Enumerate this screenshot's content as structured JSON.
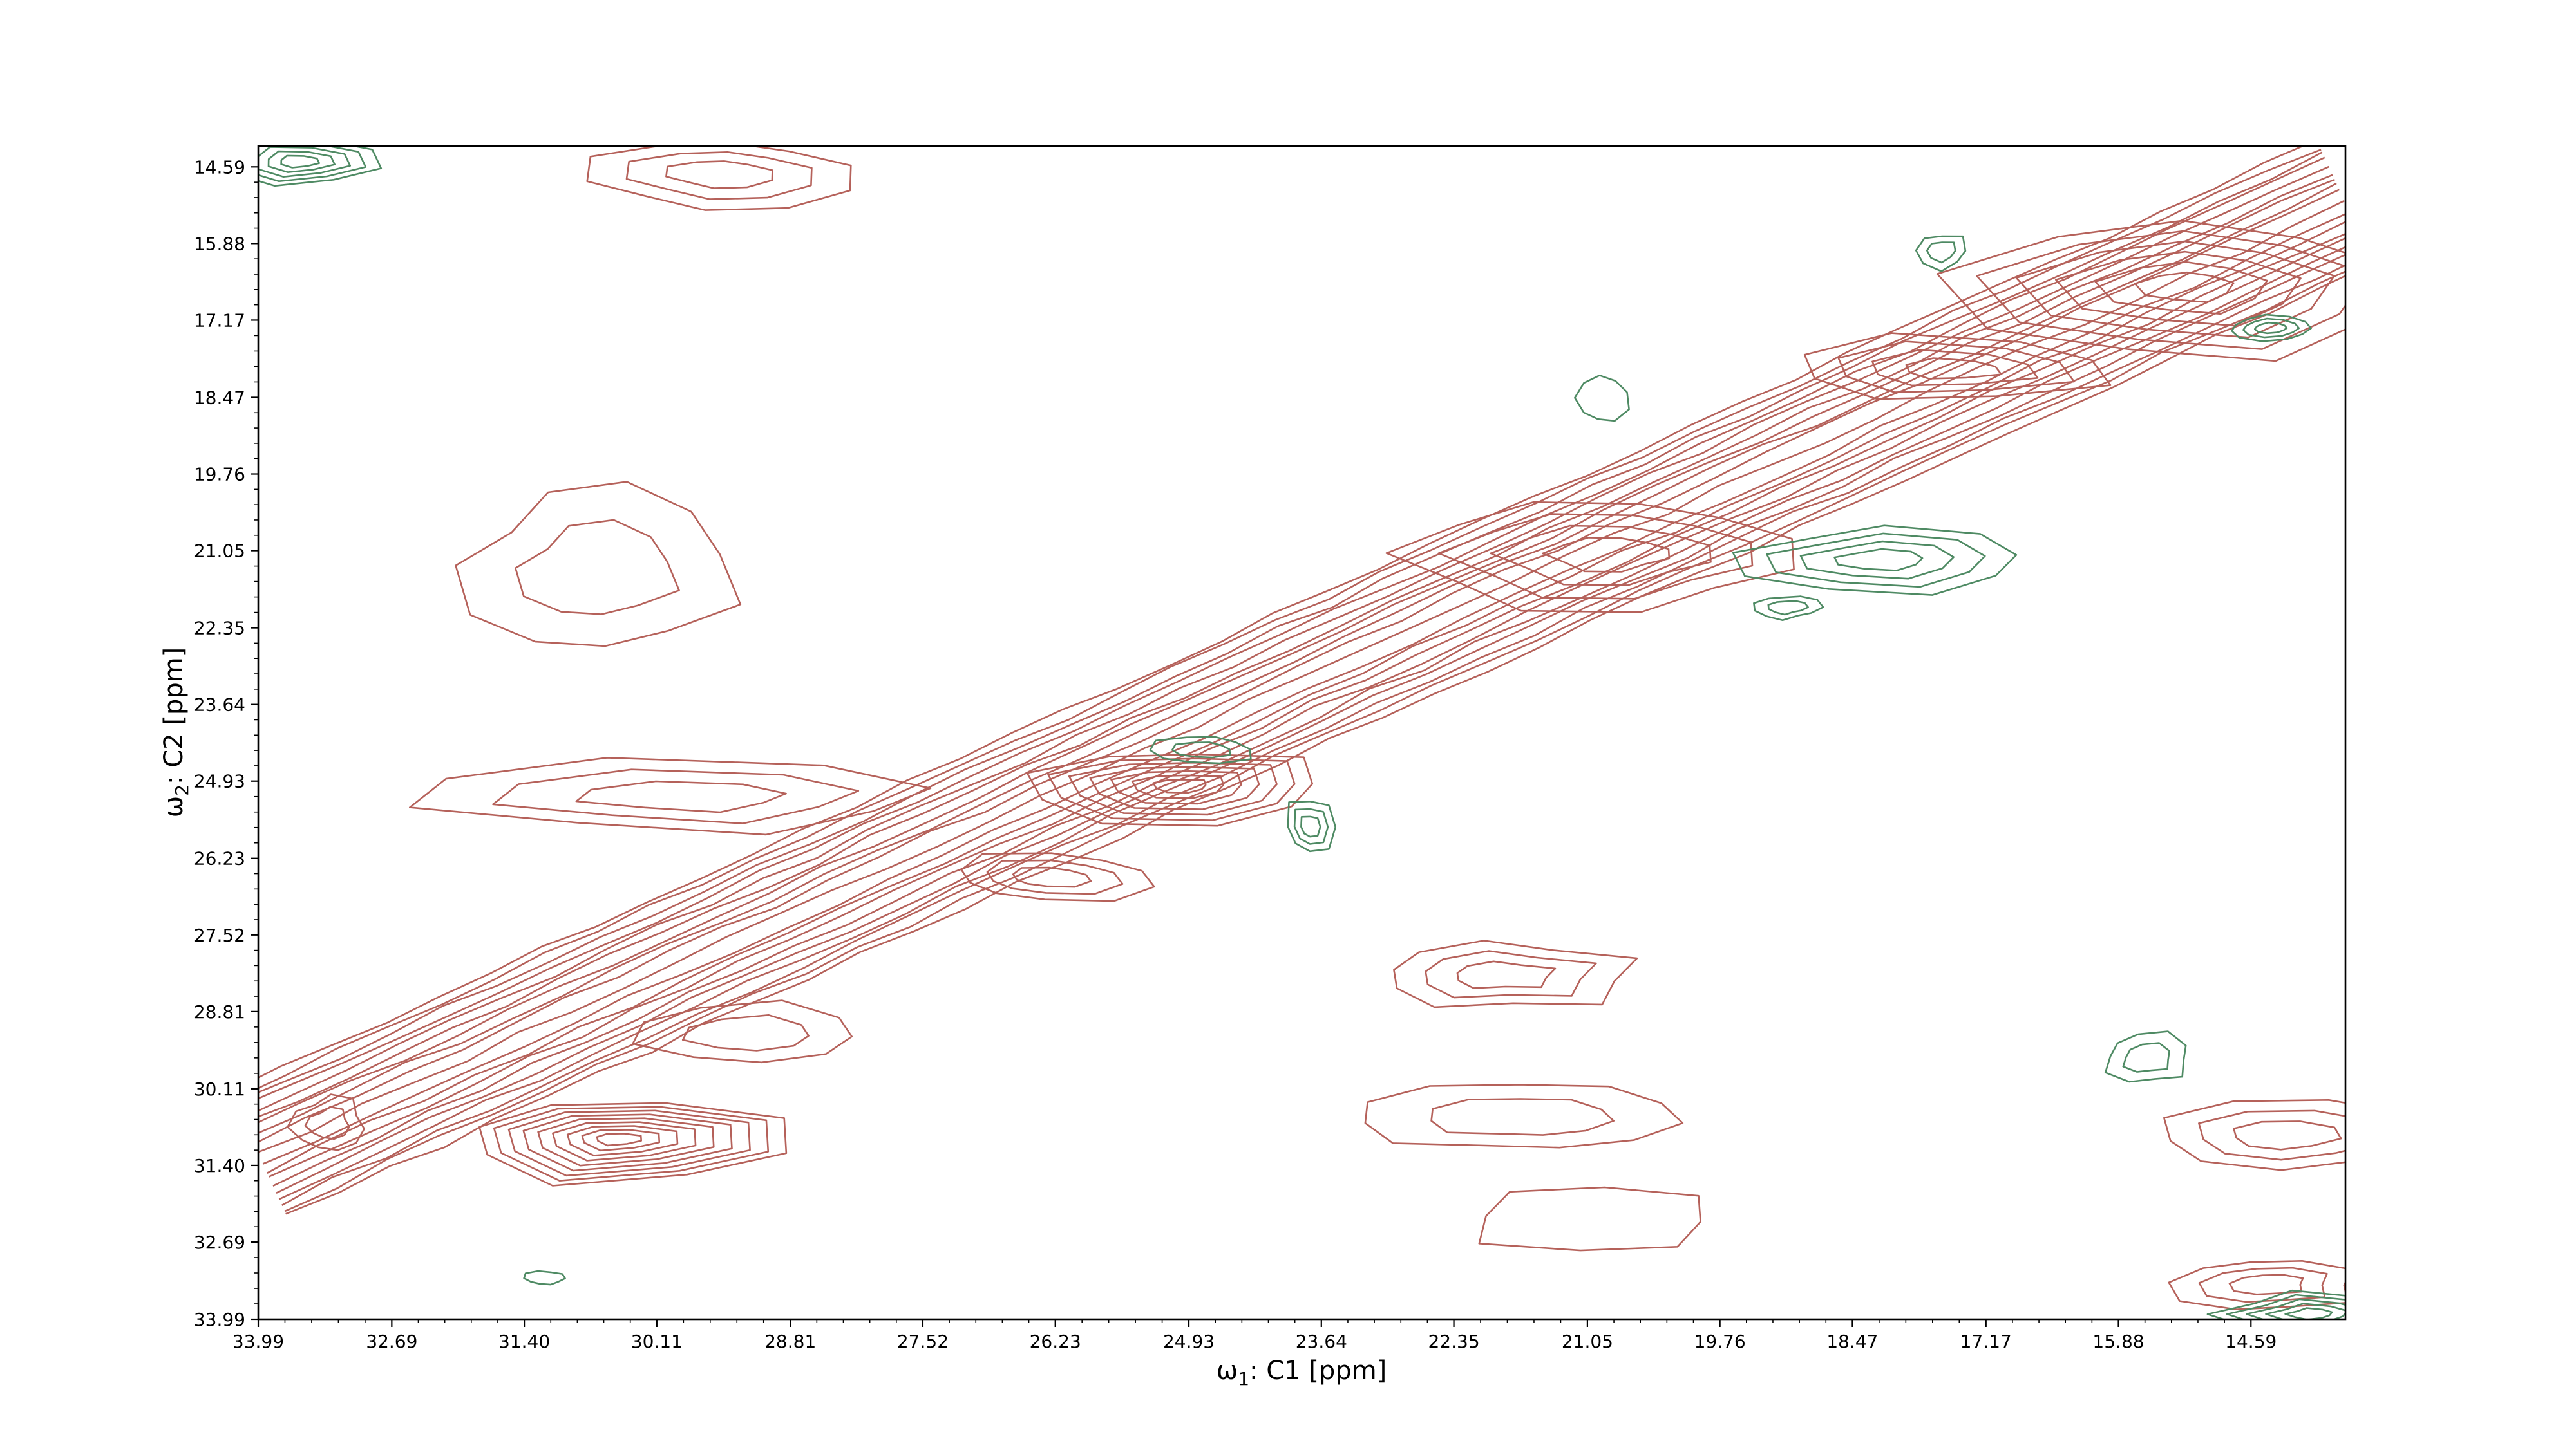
{
  "chart_data": {
    "type": "contour",
    "xlabel": {
      "omega": "ω",
      "sub": "1",
      "rest": ": C1 [ppm]"
    },
    "ylabel": {
      "omega": "ω",
      "sub": "2",
      "rest": ": C2 [ppm]"
    },
    "xlim": [
      33.99,
      13.67
    ],
    "ylim": [
      33.99,
      14.24
    ],
    "x_ticks": [
      "33.99",
      "32.69",
      "31.40",
      "30.11",
      "28.81",
      "27.52",
      "26.23",
      "24.93",
      "23.64",
      "22.35",
      "21.05",
      "19.76",
      "18.47",
      "17.17",
      "15.88",
      "14.59"
    ],
    "y_ticks": [
      "14.59",
      "15.88",
      "17.17",
      "18.47",
      "19.76",
      "21.05",
      "22.35",
      "23.64",
      "24.93",
      "26.23",
      "27.52",
      "28.81",
      "30.11",
      "31.40",
      "32.69",
      "33.99"
    ],
    "colors": {
      "positive": "#b5615a",
      "negative": "#4e8a63"
    },
    "diagonal": {
      "from": [
        33.99,
        31.2
      ],
      "to": [
        13.67,
        15.2
      ]
    },
    "peaks": [
      {
        "x": 30.5,
        "y": 30.95,
        "rx": 1.8,
        "ry": 0.78,
        "levels": 9,
        "sign": "positive"
      },
      {
        "x": 25.0,
        "y": 25.0,
        "rx": 1.5,
        "ry": 0.65,
        "levels": 7,
        "sign": "positive"
      },
      {
        "x": 26.3,
        "y": 26.55,
        "rx": 1.0,
        "ry": 0.42,
        "levels": 3,
        "sign": "positive"
      },
      {
        "x": 20.8,
        "y": 21.1,
        "rx": 1.9,
        "ry": 0.95,
        "levels": 4,
        "sign": "positive"
      },
      {
        "x": 17.5,
        "y": 18.0,
        "rx": 1.6,
        "ry": 0.55,
        "levels": 4,
        "sign": "positive"
      },
      {
        "x": 15.2,
        "y": 16.6,
        "rx": 2.2,
        "ry": 1.3,
        "levels": 6,
        "sign": "positive"
      },
      {
        "x": 29.5,
        "y": 14.7,
        "rx": 1.2,
        "ry": 0.6,
        "levels": 3,
        "sign": "positive"
      },
      {
        "x": 30.7,
        "y": 21.4,
        "rx": 1.3,
        "ry": 1.4,
        "levels": 2,
        "sign": "positive"
      },
      {
        "x": 29.8,
        "y": 25.2,
        "rx": 2.6,
        "ry": 0.6,
        "levels": 3,
        "sign": "positive"
      },
      {
        "x": 29.2,
        "y": 29.2,
        "rx": 1.2,
        "ry": 0.55,
        "levels": 2,
        "sign": "positive"
      },
      {
        "x": 21.9,
        "y": 28.2,
        "rx": 1.3,
        "ry": 0.6,
        "levels": 3,
        "sign": "positive"
      },
      {
        "x": 21.7,
        "y": 30.6,
        "rx": 1.4,
        "ry": 0.55,
        "levels": 2,
        "sign": "positive"
      },
      {
        "x": 21.0,
        "y": 32.3,
        "rx": 1.3,
        "ry": 0.6,
        "levels": 1,
        "sign": "positive"
      },
      {
        "x": 14.3,
        "y": 30.9,
        "rx": 1.3,
        "ry": 0.6,
        "levels": 3,
        "sign": "positive"
      },
      {
        "x": 14.4,
        "y": 33.4,
        "rx": 0.9,
        "ry": 0.45,
        "levels": 3,
        "sign": "positive"
      },
      {
        "x": 33.3,
        "y": 30.7,
        "rx": 0.35,
        "ry": 0.45,
        "levels": 2,
        "sign": "positive"
      },
      {
        "x": 23.75,
        "y": 25.7,
        "rx": 0.25,
        "ry": 0.5,
        "levels": 3,
        "sign": "negative"
      },
      {
        "x": 18.2,
        "y": 21.2,
        "rx": 1.4,
        "ry": 0.55,
        "levels": 4,
        "sign": "negative"
      },
      {
        "x": 15.6,
        "y": 29.6,
        "rx": 0.45,
        "ry": 0.45,
        "levels": 2,
        "sign": "negative"
      },
      {
        "x": 14.4,
        "y": 17.3,
        "rx": 0.4,
        "ry": 0.2,
        "levels": 3,
        "sign": "negative"
      },
      {
        "x": 17.6,
        "y": 16.0,
        "rx": 0.25,
        "ry": 0.3,
        "levels": 2,
        "sign": "negative"
      },
      {
        "x": 20.9,
        "y": 18.5,
        "rx": 0.25,
        "ry": 0.4,
        "levels": 1,
        "sign": "negative"
      },
      {
        "x": 24.8,
        "y": 24.4,
        "rx": 0.5,
        "ry": 0.25,
        "levels": 2,
        "sign": "negative"
      },
      {
        "x": 19.1,
        "y": 22.0,
        "rx": 0.3,
        "ry": 0.2,
        "levels": 2,
        "sign": "negative"
      },
      {
        "x": 33.6,
        "y": 14.5,
        "rx": 0.8,
        "ry": 0.4,
        "levels": 5,
        "sign": "negative"
      },
      {
        "x": 14.0,
        "y": 33.9,
        "rx": 0.9,
        "ry": 0.35,
        "levels": 5,
        "sign": "negative"
      },
      {
        "x": 31.2,
        "y": 33.3,
        "rx": 0.2,
        "ry": 0.12,
        "levels": 1,
        "sign": "negative"
      }
    ]
  }
}
